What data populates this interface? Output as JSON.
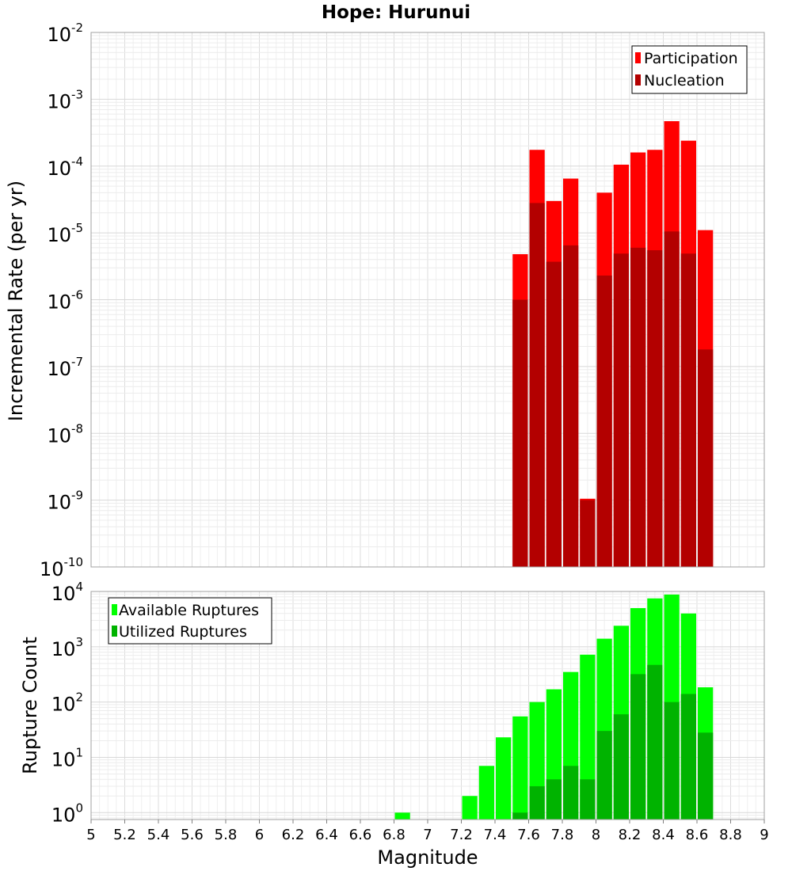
{
  "chart_data": [
    {
      "type": "bar",
      "title": "Hope: Hurunui",
      "ylabel": "Incremental Rate (per yr)",
      "xlabel": "",
      "yscale": "log",
      "ylim": [
        1e-10,
        0.01
      ],
      "xlim": [
        5,
        9
      ],
      "grid": true,
      "legend_position": "top-right",
      "y_tick_exponents": [
        -10,
        -9,
        -8,
        -7,
        -6,
        -5,
        -4,
        -3,
        -2
      ],
      "y_tick_base": "10",
      "bin_width": 0.1,
      "series": [
        {
          "name": "Participation",
          "color": "#ff0000",
          "x": [
            7.55,
            7.65,
            7.75,
            7.85,
            7.95,
            8.05,
            8.15,
            8.25,
            8.35,
            8.45,
            8.55,
            8.65
          ],
          "values": [
            4.8e-06,
            0.000175,
            3e-05,
            6.5e-05,
            1.05e-09,
            4e-05,
            0.000105,
            0.00016,
            0.000175,
            0.00047,
            0.00024,
            1.1e-05
          ]
        },
        {
          "name": "Nucleation",
          "color": "#b30000",
          "x": [
            7.55,
            7.65,
            7.75,
            7.85,
            7.95,
            8.05,
            8.15,
            8.25,
            8.35,
            8.45,
            8.55,
            8.65
          ],
          "values": [
            1e-06,
            2.8e-05,
            3.7e-06,
            6.5e-06,
            1e-09,
            2.3e-06,
            4.9e-06,
            6e-06,
            5.5e-06,
            1.05e-05,
            4.9e-06,
            1.8e-07
          ]
        }
      ]
    },
    {
      "type": "bar",
      "title": "",
      "ylabel": "Rupture Count",
      "xlabel": "Magnitude",
      "yscale": "log",
      "ylim": [
        0.75,
        10000
      ],
      "xlim": [
        5,
        9
      ],
      "grid": true,
      "legend_position": "top-left",
      "y_tick_exponents": [
        0,
        1,
        2,
        3,
        4
      ],
      "y_tick_base": "10",
      "x_ticks": [
        "5",
        "5.2",
        "5.4",
        "5.6",
        "5.8",
        "6",
        "6.2",
        "6.4",
        "6.6",
        "6.8",
        "7",
        "7.2",
        "7.4",
        "7.6",
        "7.8",
        "8",
        "8.2",
        "8.4",
        "8.6",
        "8.8",
        "9"
      ],
      "bin_width": 0.1,
      "series": [
        {
          "name": "Available Ruptures",
          "color": "#00ff00",
          "x": [
            6.85,
            7.25,
            7.35,
            7.45,
            7.55,
            7.65,
            7.75,
            7.85,
            7.95,
            8.05,
            8.15,
            8.25,
            8.35,
            8.45,
            8.55,
            8.65
          ],
          "values": [
            1,
            2,
            7,
            23,
            55,
            100,
            170,
            350,
            720,
            1400,
            2400,
            5000,
            7500,
            8800,
            4000,
            185
          ]
        },
        {
          "name": "Utilized Ruptures",
          "color": "#00b300",
          "x": [
            7.55,
            7.65,
            7.75,
            7.85,
            7.95,
            8.05,
            8.15,
            8.25,
            8.35,
            8.45,
            8.55,
            8.65
          ],
          "values": [
            1,
            3,
            4,
            7,
            4,
            30,
            60,
            320,
            470,
            100,
            140,
            28
          ]
        }
      ]
    }
  ]
}
